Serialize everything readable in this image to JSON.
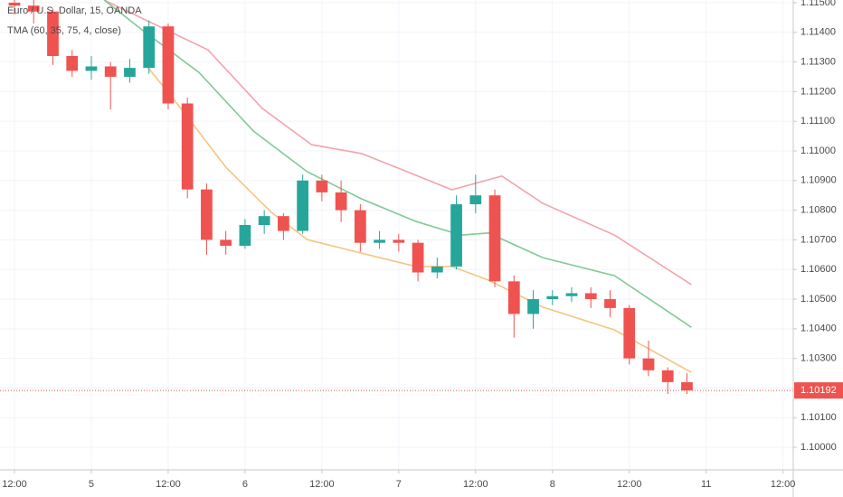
{
  "chart_data": {
    "type": "candlestick",
    "title": "Euro / U.S. Dollar, 15, OANDA",
    "subtitle": "TMA (60, 35, 75, 4, close)",
    "up_color": "#26a69a",
    "down_color": "#ef5350",
    "x": [
      0,
      3,
      6,
      9,
      12,
      15,
      18,
      21,
      24,
      27,
      30,
      33,
      36,
      39,
      42,
      45,
      48,
      51,
      54,
      57,
      60,
      63,
      66,
      69,
      72,
      75,
      78,
      81,
      84,
      87,
      90,
      93,
      96,
      99,
      102,
      105
    ],
    "open": [
      1.115,
      1.1149,
      1.1147,
      1.1132,
      1.1127,
      1.11285,
      1.1125,
      1.1128,
      1.1142,
      1.1116,
      1.1087,
      1.107,
      1.1068,
      1.1075,
      1.1078,
      1.1073,
      1.109,
      1.1086,
      1.108,
      1.1069,
      1.107,
      1.1069,
      1.1059,
      1.1061,
      1.1082,
      1.1085,
      1.1056,
      1.1045,
      1.105,
      1.1051,
      1.1052,
      1.105,
      1.1047,
      1.103,
      1.1026,
      1.1022
    ],
    "high": [
      1.1152,
      1.1151,
      1.1148,
      1.1134,
      1.1132,
      1.113,
      1.1131,
      1.1144,
      1.1143,
      1.1118,
      1.1089,
      1.1073,
      1.1077,
      1.108,
      1.1079,
      1.1092,
      1.1092,
      1.109,
      1.1082,
      1.1073,
      1.1072,
      1.107,
      1.1064,
      1.1085,
      1.1092,
      1.1087,
      1.1058,
      1.1053,
      1.1053,
      1.1054,
      1.1054,
      1.1053,
      1.1048,
      1.1036,
      1.1027,
      1.1025
    ],
    "low": [
      1.1146,
      1.1143,
      1.1129,
      1.1125,
      1.1124,
      1.1114,
      1.1123,
      1.1126,
      1.1114,
      1.1084,
      1.1065,
      1.1065,
      1.1067,
      1.1072,
      1.107,
      1.1072,
      1.1083,
      1.1076,
      1.1066,
      1.1067,
      1.1066,
      1.1056,
      1.1057,
      1.106,
      1.1079,
      1.1054,
      1.1037,
      1.104,
      1.1048,
      1.1049,
      1.1047,
      1.1044,
      1.1028,
      1.1024,
      1.1018,
      1.1018
    ],
    "close": [
      1.1149,
      1.1147,
      1.1132,
      1.1127,
      1.11285,
      1.1125,
      1.1128,
      1.1142,
      1.1116,
      1.1087,
      1.107,
      1.1068,
      1.1075,
      1.1078,
      1.1073,
      1.109,
      1.1086,
      1.108,
      1.1069,
      1.107,
      1.1069,
      1.1059,
      1.1061,
      1.1082,
      1.1085,
      1.1056,
      1.1045,
      1.105,
      1.1051,
      1.1052,
      1.105,
      1.1047,
      1.103,
      1.1026,
      1.1022,
      1.10192
    ],
    "series": [
      {
        "color": "#f2a3ab",
        "x": [
          14,
          30.2,
          38.7,
          46.4,
          54.2,
          61.3,
          68.3,
          76.1,
          82.5,
          93.7,
          105.7
        ],
        "values": [
          1.11509,
          1.11341,
          1.11143,
          1.11021,
          1.10991,
          1.1093,
          1.10869,
          1.10915,
          1.10823,
          1.10716,
          1.10549
        ]
      },
      {
        "color": "#81c995",
        "x": [
          14,
          20.3,
          28.8,
          37.3,
          45.7,
          54.2,
          62.7,
          69.7,
          74,
          82.5,
          93.7,
          105.7
        ],
        "values": [
          1.11509,
          1.11402,
          1.11265,
          1.11067,
          1.1093,
          1.10838,
          1.10762,
          1.10716,
          1.10723,
          1.1064,
          1.10579,
          1.10405
        ]
      },
      {
        "color": "#f8c47f",
        "x": [
          20.3,
          26,
          33,
          40.1,
          45.7,
          54.2,
          62.7,
          68.3,
          74,
          82.5,
          93.7,
          105.7
        ],
        "values": [
          1.11296,
          1.11143,
          1.10945,
          1.10793,
          1.10701,
          1.10655,
          1.1061,
          1.1061,
          1.10564,
          1.10473,
          1.10396,
          1.10253
        ]
      }
    ],
    "last_price": 1.10192,
    "last_price_color": "#ef5350",
    "xlim": [
      -2.26,
      121.6
    ],
    "ylim": [
      1.09924,
      1.11509
    ],
    "xticks": [
      {
        "value": 0,
        "label": "12:00"
      },
      {
        "value": 12,
        "label": "5"
      },
      {
        "value": 24,
        "label": "12:00"
      },
      {
        "value": 36,
        "label": "6"
      },
      {
        "value": 48,
        "label": "12:00"
      },
      {
        "value": 60,
        "label": "7"
      },
      {
        "value": 72,
        "label": "12:00"
      },
      {
        "value": 84,
        "label": "8"
      },
      {
        "value": 96,
        "label": "12:00"
      },
      {
        "value": 108,
        "label": "11"
      },
      {
        "value": 120,
        "label": "12:00"
      }
    ],
    "yticks": [
      {
        "value": 1.1,
        "label": "1.10000"
      },
      {
        "value": 1.101,
        "label": "1.10100"
      },
      {
        "value": 1.102,
        "label": "1.10200"
      },
      {
        "value": 1.103,
        "label": "1.10300"
      },
      {
        "value": 1.104,
        "label": "1.10400"
      },
      {
        "value": 1.105,
        "label": "1.10500"
      },
      {
        "value": 1.106,
        "label": "1.10600"
      },
      {
        "value": 1.107,
        "label": "1.10700"
      },
      {
        "value": 1.108,
        "label": "1.10800"
      },
      {
        "value": 1.109,
        "label": "1.10900"
      },
      {
        "value": 1.11,
        "label": "1.11000"
      },
      {
        "value": 1.111,
        "label": "1.11100"
      },
      {
        "value": 1.112,
        "label": "1.11200"
      },
      {
        "value": 1.113,
        "label": "1.11300"
      },
      {
        "value": 1.114,
        "label": "1.11400"
      },
      {
        "value": 1.115,
        "label": "1.11500"
      }
    ],
    "grid": true
  }
}
